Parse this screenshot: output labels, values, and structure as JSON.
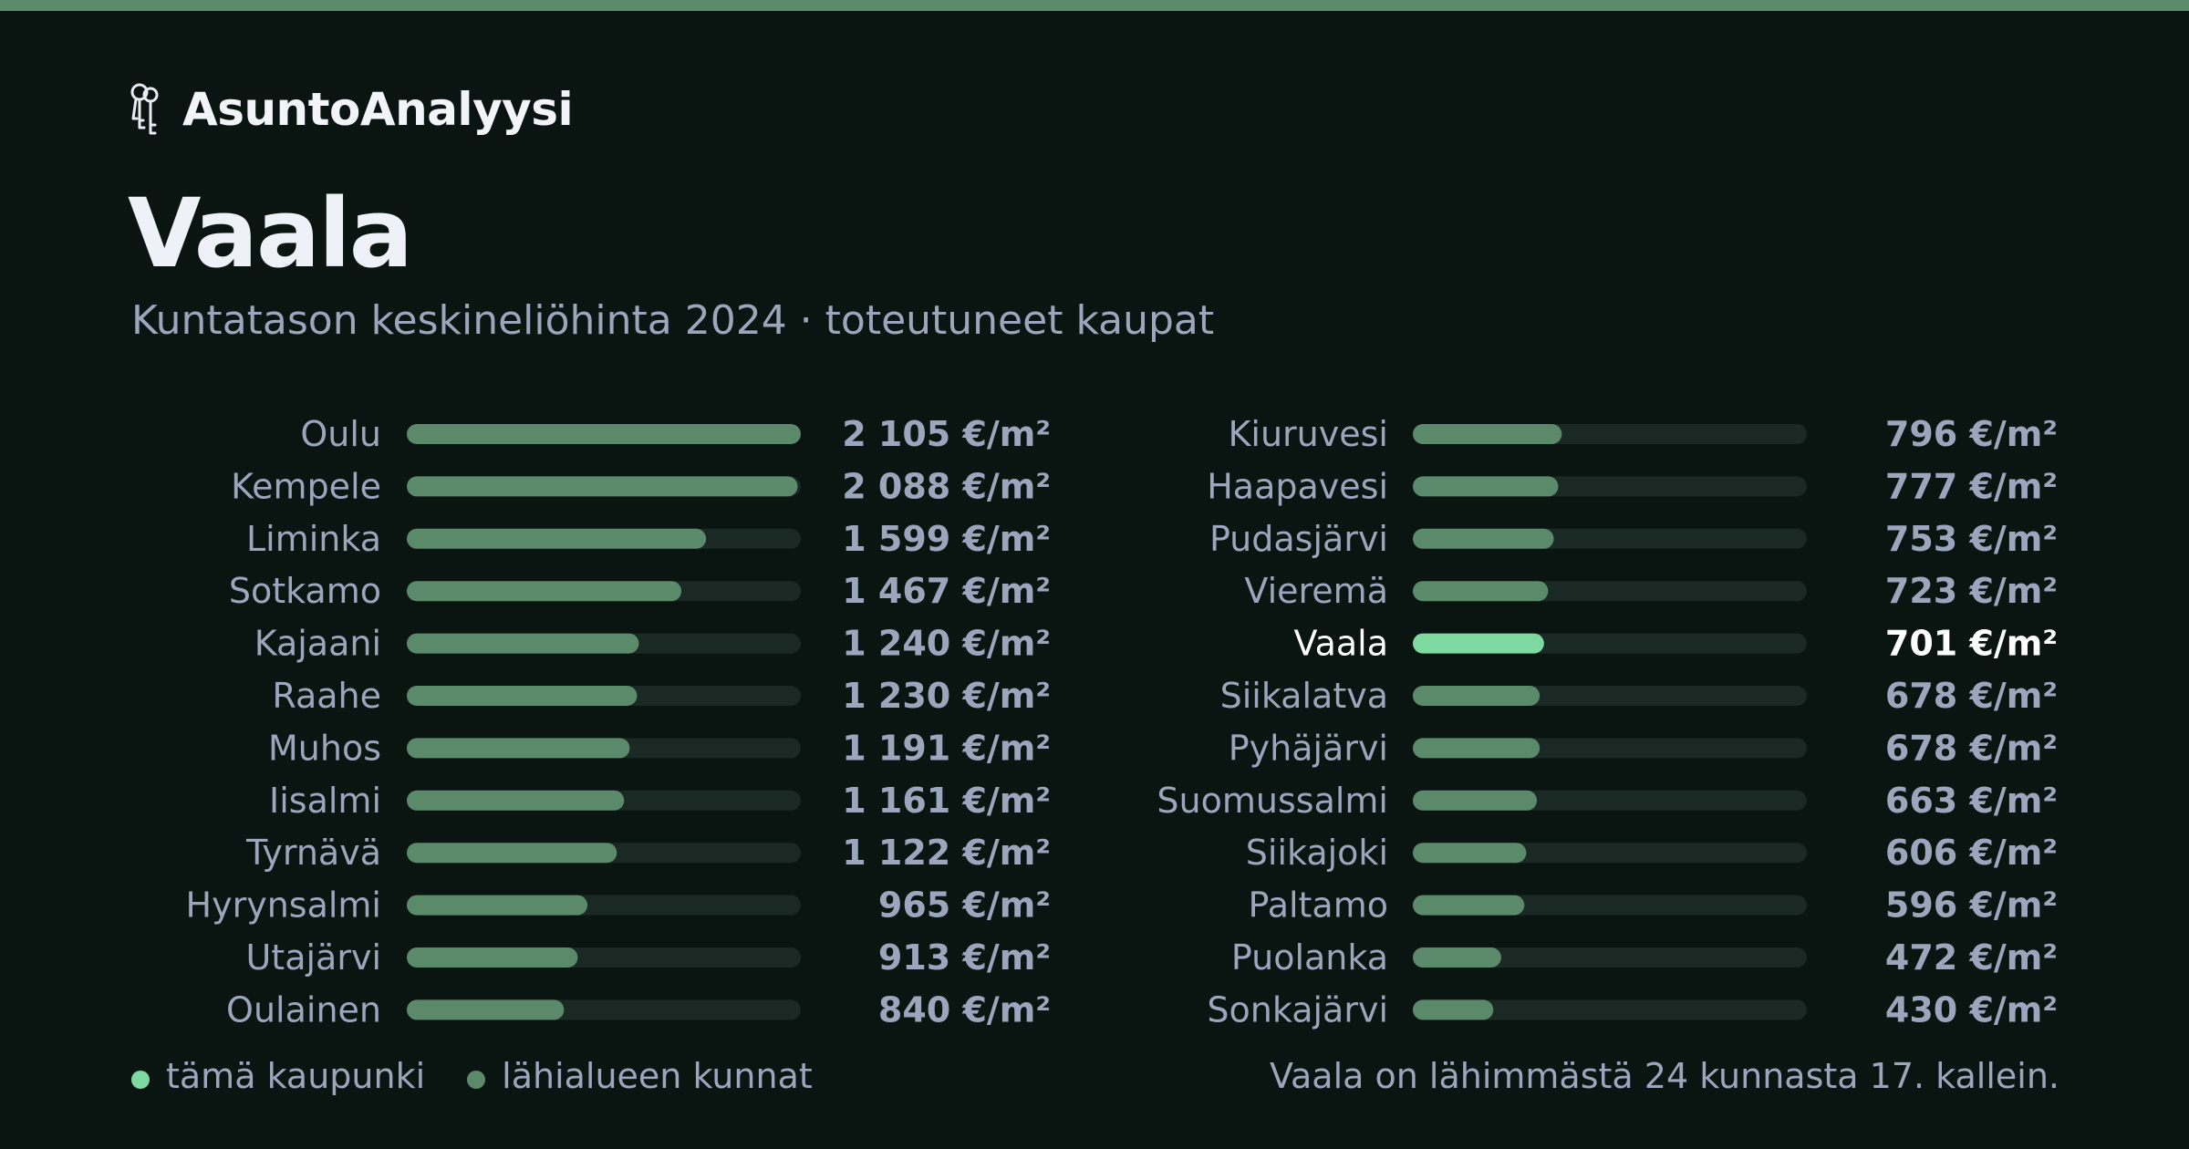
{
  "brand": {
    "name": "AsuntoAnalyysi",
    "icon": "keys-icon"
  },
  "title": "Vaala",
  "subtitle": "Kuntatason keskineliöhinta 2024 · toteutuneet kaupat",
  "colors": {
    "background": "#0a1512",
    "accent_stripe": "#5b8a6a",
    "bar": "#5b8a6a",
    "bar_highlight": "#7dd9a0",
    "track": "#1a2924",
    "text": "#9ba6bd",
    "text_highlight": "#ffffff"
  },
  "chart_data": {
    "type": "bar",
    "orientation": "horizontal",
    "unit": "€/m²",
    "highlight": "Vaala",
    "xlim": [
      0,
      2105
    ],
    "categories": [
      "Oulu",
      "Kempele",
      "Liminka",
      "Sotkamo",
      "Kajaani",
      "Raahe",
      "Muhos",
      "Iisalmi",
      "Tyrnävä",
      "Hyrynsalmi",
      "Utajärvi",
      "Oulainen",
      "Kiuruvesi",
      "Haapavesi",
      "Pudasjärvi",
      "Vieremä",
      "Vaala",
      "Siikalatva",
      "Pyhäjärvi",
      "Suomussalmi",
      "Siikajoki",
      "Paltamo",
      "Puolanka",
      "Sonkajärvi"
    ],
    "values": [
      2105,
      2088,
      1599,
      1467,
      1240,
      1230,
      1191,
      1161,
      1122,
      965,
      913,
      840,
      796,
      777,
      753,
      723,
      701,
      678,
      678,
      663,
      606,
      596,
      472,
      430
    ],
    "value_labels": [
      "2 105 €/m²",
      "2 088 €/m²",
      "1 599 €/m²",
      "1 467 €/m²",
      "1 240 €/m²",
      "1 230 €/m²",
      "1 191 €/m²",
      "1 161 €/m²",
      "1 122 €/m²",
      "965 €/m²",
      "913 €/m²",
      "840 €/m²",
      "796 €/m²",
      "777 €/m²",
      "753 €/m²",
      "723 €/m²",
      "701 €/m²",
      "678 €/m²",
      "678 €/m²",
      "663 €/m²",
      "606 €/m²",
      "596 €/m²",
      "472 €/m²",
      "430 €/m²"
    ]
  },
  "legend": {
    "this_city": "tämä kaupunki",
    "nearby": "lähialueen kunnat"
  },
  "footnote": "Vaala on lähimmästä 24 kunnasta 17. kallein."
}
